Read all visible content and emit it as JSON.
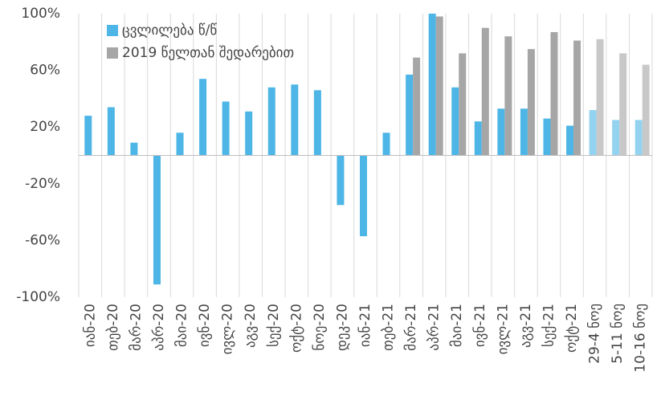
{
  "chart_data": {
    "type": "bar",
    "categories": [
      "იან-20",
      "თებ-20",
      "მარ-20",
      "აპრ-20",
      "მაი-20",
      "ივნ-20",
      "ივლ-20",
      "აგვ-20",
      "სექ-20",
      "ოქტ-20",
      "ნოე-20",
      "დეკ-20",
      "იან-21",
      "თებ-21",
      "მარ-21",
      "აპრ-21",
      "მაი-21",
      "ივნ-21",
      "ივლ-21",
      "აგვ-21",
      "სექ-21",
      "ოქტ-21",
      "29-4 ნოე",
      "5-11 ნოე",
      "10-16 ნოე"
    ],
    "series": [
      {
        "name": "ცვლილება წ/წ",
        "color": "#4db6e6",
        "colors": [
          "#4db6e6",
          "#4db6e6",
          "#4db6e6",
          "#4db6e6",
          "#4db6e6",
          "#4db6e6",
          "#4db6e6",
          "#4db6e6",
          "#4db6e6",
          "#4db6e6",
          "#4db6e6",
          "#4db6e6",
          "#4db6e6",
          "#4db6e6",
          "#4db6e6",
          "#4db6e6",
          "#4db6e6",
          "#4db6e6",
          "#4db6e6",
          "#4db6e6",
          "#4db6e6",
          "#4db6e6",
          "#93d3f0",
          "#93d3f0",
          "#93d3f0"
        ],
        "values": [
          28,
          34,
          9,
          -91,
          16,
          54,
          38,
          31,
          48,
          50,
          46,
          -35,
          -57,
          16,
          57,
          100,
          48,
          24,
          33,
          33,
          26,
          21,
          32,
          25,
          25
        ]
      },
      {
        "name": "2019 წელთან შედარებით",
        "color": "#a6a6a6",
        "colors": [
          "#a6a6a6",
          "#a6a6a6",
          "#a6a6a6",
          "#a6a6a6",
          "#a6a6a6",
          "#a6a6a6",
          "#a6a6a6",
          "#a6a6a6",
          "#a6a6a6",
          "#a6a6a6",
          "#a6a6a6",
          "#a6a6a6",
          "#a6a6a6",
          "#a6a6a6",
          "#a6a6a6",
          "#a6a6a6",
          "#a6a6a6",
          "#a6a6a6",
          "#a6a6a6",
          "#a6a6a6",
          "#a6a6a6",
          "#a6a6a6",
          "#c8c8c8",
          "#c8c8c8",
          "#c8c8c8"
        ],
        "values": [
          null,
          null,
          null,
          null,
          null,
          null,
          null,
          null,
          null,
          null,
          null,
          null,
          null,
          null,
          69,
          98,
          72,
          90,
          84,
          75,
          87,
          81,
          82,
          72,
          64
        ]
      }
    ],
    "ylim": [
      -100,
      100
    ],
    "yticks": [
      {
        "value": 100,
        "label": "100%"
      },
      {
        "value": 60,
        "label": "60%"
      },
      {
        "value": 20,
        "label": "20%"
      },
      {
        "value": -20,
        "label": "-20%"
      },
      {
        "value": -60,
        "label": "-60%"
      },
      {
        "value": -100,
        "label": "-100%"
      }
    ],
    "legend": "top-left"
  }
}
